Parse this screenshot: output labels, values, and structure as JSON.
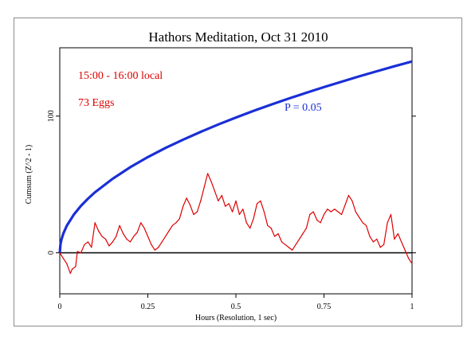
{
  "chart_data": {
    "type": "line",
    "title": "Hathors Meditation, Oct 31 2010",
    "xlabel": "Hours (Resolution, 1 sec)",
    "ylabel": "Cumsum (Z^2 - 1)",
    "xlim": [
      0,
      1
    ],
    "ylim": [
      -30,
      150
    ],
    "x_ticks": [
      "0",
      "0.25",
      "0.5",
      "0.75",
      "1"
    ],
    "x_tick_values": [
      0,
      0.25,
      0.5,
      0.75,
      1
    ],
    "y_ticks": [
      "0",
      "100"
    ],
    "y_tick_values": [
      0,
      100
    ],
    "grid": false,
    "annotations": {
      "time_range": "15:00 - 16:00 local",
      "eggs": "73 Eggs",
      "p_label": "P = 0.05"
    },
    "series": [
      {
        "role": "cumulative-deviation",
        "color": "#dd0000",
        "x": [
          0,
          0.01,
          0.02,
          0.03,
          0.035,
          0.045,
          0.05,
          0.06,
          0.07,
          0.08,
          0.09,
          0.1,
          0.11,
          0.12,
          0.13,
          0.14,
          0.15,
          0.16,
          0.17,
          0.18,
          0.19,
          0.2,
          0.21,
          0.22,
          0.23,
          0.24,
          0.25,
          0.26,
          0.27,
          0.28,
          0.29,
          0.3,
          0.31,
          0.32,
          0.33,
          0.34,
          0.35,
          0.36,
          0.37,
          0.38,
          0.39,
          0.4,
          0.41,
          0.42,
          0.43,
          0.44,
          0.45,
          0.46,
          0.47,
          0.48,
          0.49,
          0.5,
          0.51,
          0.52,
          0.53,
          0.54,
          0.55,
          0.56,
          0.57,
          0.58,
          0.59,
          0.6,
          0.61,
          0.62,
          0.63,
          0.64,
          0.65,
          0.66,
          0.67,
          0.68,
          0.69,
          0.7,
          0.71,
          0.72,
          0.73,
          0.74,
          0.75,
          0.76,
          0.77,
          0.78,
          0.79,
          0.8,
          0.81,
          0.82,
          0.83,
          0.84,
          0.85,
          0.86,
          0.87,
          0.88,
          0.89,
          0.9,
          0.91,
          0.92,
          0.93,
          0.94,
          0.95,
          0.96,
          0.97,
          0.98,
          0.99,
          1.0
        ],
        "y": [
          0,
          -4,
          -8,
          -15,
          -12,
          -10,
          1,
          0,
          6,
          8,
          4,
          22,
          16,
          12,
          10,
          5,
          8,
          12,
          20,
          14,
          10,
          8,
          12,
          15,
          22,
          18,
          12,
          6,
          2,
          4,
          8,
          12,
          16,
          20,
          22,
          25,
          34,
          40,
          35,
          28,
          30,
          38,
          48,
          58,
          52,
          45,
          38,
          42,
          34,
          36,
          30,
          38,
          28,
          32,
          22,
          18,
          25,
          36,
          38,
          30,
          20,
          18,
          12,
          14,
          8,
          6,
          4,
          2,
          6,
          10,
          14,
          18,
          28,
          30,
          24,
          22,
          28,
          32,
          30,
          32,
          30,
          28,
          35,
          42,
          38,
          30,
          26,
          22,
          20,
          12,
          8,
          10,
          4,
          6,
          22,
          28,
          10,
          14,
          8,
          2,
          -4,
          -8
        ]
      },
      {
        "role": "p-0.05-envelope",
        "color": "#1a2fd6",
        "x": [
          0,
          0.002,
          0.005,
          0.01,
          0.02,
          0.04,
          0.06,
          0.08,
          0.1,
          0.15,
          0.2,
          0.25,
          0.3,
          0.35,
          0.4,
          0.45,
          0.5,
          0.55,
          0.6,
          0.65,
          0.7,
          0.75,
          0.8,
          0.85,
          0.9,
          0.95,
          1.0
        ],
        "y": [
          0,
          6.3,
          9.9,
          14,
          19.8,
          28,
          34.3,
          39.6,
          44.3,
          54.2,
          62.6,
          70,
          76.7,
          82.8,
          88.5,
          93.9,
          99,
          103.8,
          108.4,
          112.9,
          117.1,
          121.2,
          125.2,
          129.1,
          132.8,
          136.5,
          140
        ]
      }
    ]
  }
}
